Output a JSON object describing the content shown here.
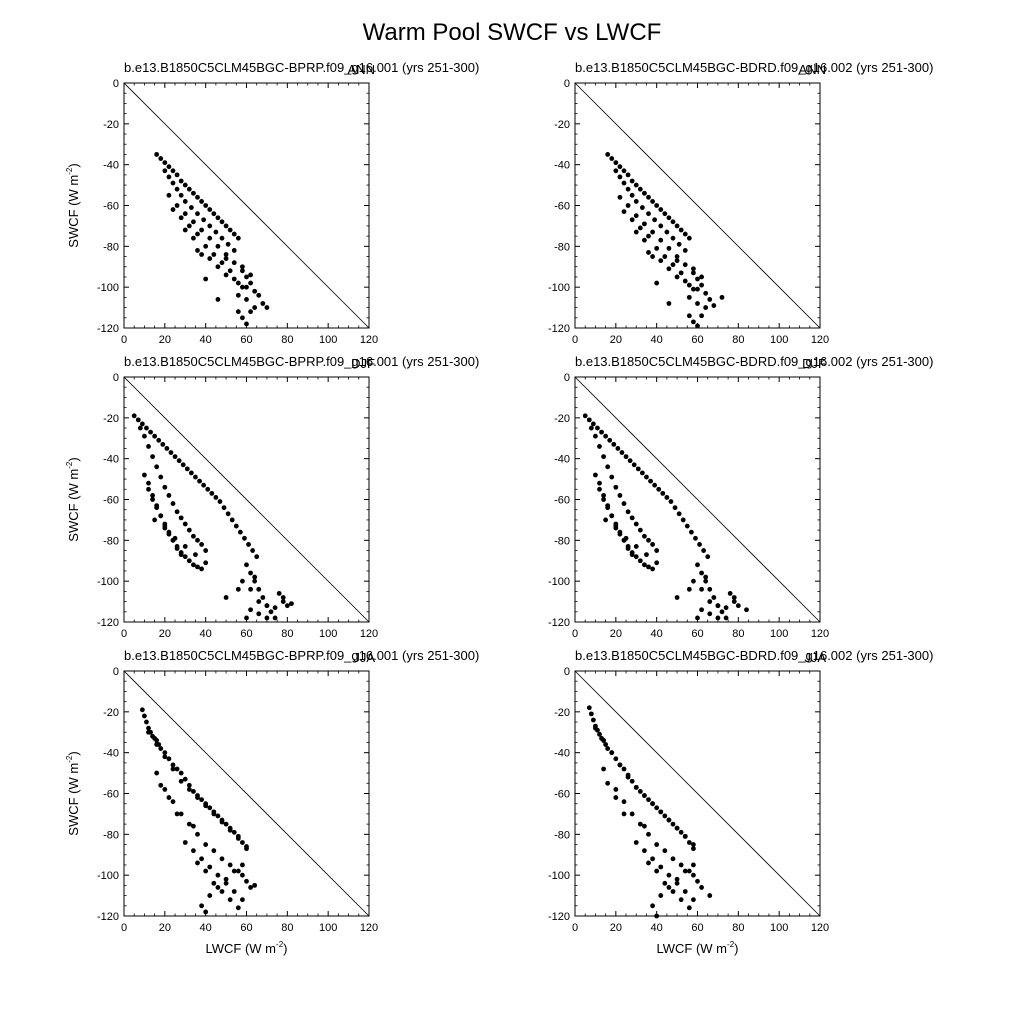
{
  "figure": {
    "title": "Warm Pool SWCF vs LWCF"
  },
  "chart_data": [
    {
      "type": "scatter",
      "panel": 0,
      "position": "top-left",
      "title": "b.e13.B1850C5CLM45BGC-BPRP.f09_g16.001 (yrs 251-300)",
      "season": "ANN",
      "xlabel": "",
      "ylabel": "SWCF (W m-2)",
      "xlabel_main": "",
      "xlabel_unit": "",
      "ylabel_main": "SWCF",
      "ylabel_unit": "(W m",
      "ylabel_sup": "-2",
      "ylabel_close": ")",
      "xlim": [
        0,
        120
      ],
      "ylim": [
        -120,
        0
      ],
      "xticks": [
        "0",
        "20",
        "40",
        "60",
        "80",
        "100",
        "120"
      ],
      "yticks": [
        "0",
        "-20",
        "-40",
        "-60",
        "-80",
        "-100",
        "-120"
      ],
      "reference_line": "1:1 (SWCF = -LWCF)",
      "points_x": [
        16,
        18,
        20,
        22,
        24,
        26,
        28,
        30,
        32,
        34,
        36,
        38,
        40,
        42,
        44,
        46,
        48,
        50,
        52,
        54,
        56,
        20,
        22,
        24,
        26,
        28,
        30,
        33,
        36,
        39,
        42,
        45,
        48,
        51,
        54,
        22,
        26,
        30,
        34,
        38,
        42,
        46,
        50,
        54,
        58,
        60,
        62,
        64,
        66,
        68,
        70,
        58,
        60,
        62,
        56,
        58,
        60,
        64,
        54,
        56,
        58,
        60,
        62,
        48,
        52,
        56,
        44,
        50,
        24,
        28,
        32,
        36,
        40,
        30,
        34,
        38,
        42,
        46,
        50,
        36,
        40,
        46
      ],
      "points_y": [
        -35,
        -37,
        -39,
        -41,
        -43,
        -45,
        -48,
        -50,
        -52,
        -54,
        -56,
        -58,
        -60,
        -62,
        -64,
        -66,
        -68,
        -70,
        -72,
        -74,
        -76,
        -43,
        -46,
        -49,
        -52,
        -55,
        -58,
        -61,
        -64,
        -67,
        -70,
        -73,
        -76,
        -79,
        -82,
        -55,
        -60,
        -64,
        -68,
        -72,
        -76,
        -80,
        -84,
        -88,
        -92,
        -95,
        -98,
        -102,
        -104,
        -108,
        -110,
        -100,
        -106,
        -112,
        -112,
        -115,
        -118,
        -110,
        -96,
        -104,
        -90,
        -100,
        -94,
        -88,
        -92,
        -98,
        -84,
        -86,
        -62,
        -66,
        -70,
        -74,
        -80,
        -72,
        -76,
        -84,
        -86,
        -90,
        -94,
        -82,
        -96,
        -106
      ]
    },
    {
      "type": "scatter",
      "panel": 1,
      "position": "top-right",
      "title": "b.e13.B1850C5CLM45BGC-BDRD.f09_g16.002 (yrs 251-300)",
      "season": "ANN",
      "xlabel": "",
      "ylabel": "",
      "xlabel_main": "",
      "xlabel_unit": "",
      "ylabel_main": "",
      "ylabel_unit": "",
      "ylabel_sup": "",
      "ylabel_close": "",
      "xlim": [
        0,
        120
      ],
      "ylim": [
        -120,
        0
      ],
      "xticks": [
        "0",
        "20",
        "40",
        "60",
        "80",
        "100",
        "120"
      ],
      "yticks": [
        "0",
        "-20",
        "-40",
        "-60",
        "-80",
        "-100",
        "-120"
      ],
      "reference_line": "1:1 (SWCF = -LWCF)",
      "points_x": [
        16,
        18,
        20,
        22,
        24,
        26,
        28,
        30,
        32,
        34,
        36,
        38,
        40,
        42,
        44,
        46,
        48,
        50,
        52,
        54,
        56,
        20,
        22,
        24,
        26,
        28,
        30,
        33,
        36,
        39,
        42,
        45,
        48,
        51,
        54,
        22,
        26,
        30,
        34,
        38,
        42,
        46,
        50,
        54,
        58,
        60,
        62,
        64,
        66,
        68,
        72,
        58,
        60,
        62,
        56,
        58,
        60,
        64,
        54,
        56,
        58,
        60,
        62,
        48,
        52,
        56,
        44,
        50,
        24,
        28,
        32,
        36,
        40,
        30,
        34,
        38,
        42,
        46,
        50,
        36,
        40,
        46
      ],
      "points_y": [
        -35,
        -37,
        -39,
        -41,
        -43,
        -45,
        -48,
        -50,
        -52,
        -54,
        -56,
        -58,
        -60,
        -62,
        -64,
        -66,
        -68,
        -70,
        -72,
        -74,
        -76,
        -43,
        -46,
        -49,
        -52,
        -55,
        -58,
        -61,
        -64,
        -67,
        -70,
        -73,
        -76,
        -79,
        -82,
        -56,
        -60,
        -65,
        -69,
        -73,
        -77,
        -81,
        -85,
        -89,
        -93,
        -96,
        -99,
        -103,
        -106,
        -109,
        -105,
        -101,
        -108,
        -114,
        -114,
        -117,
        -119,
        -110,
        -97,
        -105,
        -91,
        -101,
        -95,
        -89,
        -93,
        -99,
        -85,
        -87,
        -63,
        -67,
        -71,
        -75,
        -81,
        -73,
        -77,
        -85,
        -87,
        -91,
        -95,
        -83,
        -98,
        -108
      ]
    },
    {
      "type": "scatter",
      "panel": 2,
      "position": "middle-left",
      "title": "b.e13.B1850C5CLM45BGC-BPRP.f09_g16.001 (yrs 251-300)",
      "season": "DJF",
      "xlabel": "",
      "ylabel": "SWCF (W m-2)",
      "xlabel_main": "",
      "xlabel_unit": "",
      "ylabel_main": "SWCF",
      "ylabel_unit": "(W m",
      "ylabel_sup": "-2",
      "ylabel_close": ")",
      "xlim": [
        0,
        120
      ],
      "ylim": [
        -120,
        0
      ],
      "xticks": [
        "0",
        "20",
        "40",
        "60",
        "80",
        "100",
        "120"
      ],
      "yticks": [
        "0",
        "-20",
        "-40",
        "-60",
        "-80",
        "-100",
        "-120"
      ],
      "reference_line": "1:1 (SWCF = -LWCF)",
      "points_x": [
        5,
        7,
        9,
        11,
        13,
        15,
        17,
        19,
        21,
        23,
        25,
        27,
        29,
        31,
        33,
        35,
        37,
        39,
        41,
        43,
        45,
        47,
        49,
        51,
        53,
        55,
        57,
        59,
        61,
        63,
        65,
        8,
        10,
        12,
        14,
        16,
        18,
        20,
        22,
        24,
        26,
        28,
        30,
        32,
        34,
        36,
        38,
        40,
        12,
        14,
        16,
        18,
        20,
        22,
        24,
        26,
        28,
        30,
        32,
        34,
        36,
        38,
        10,
        12,
        14,
        16,
        18,
        20,
        22,
        24,
        26,
        28,
        15,
        20,
        25,
        30,
        35,
        40,
        60,
        62,
        64,
        66,
        68,
        70,
        72,
        74,
        76,
        78,
        80,
        82,
        62,
        66,
        70,
        74,
        78,
        58,
        62,
        66,
        70,
        60,
        64,
        56,
        50,
        54,
        48
      ],
      "points_y": [
        -19,
        -21,
        -23,
        -25,
        -27,
        -29,
        -31,
        -33,
        -35,
        -37,
        -39,
        -41,
        -43,
        -45,
        -47,
        -49,
        -51,
        -53,
        -55,
        -57,
        -59,
        -61,
        -64,
        -67,
        -70,
        -73,
        -76,
        -79,
        -82,
        -85,
        -88,
        -25,
        -29,
        -34,
        -39,
        -44,
        -49,
        -54,
        -58,
        -62,
        -66,
        -69,
        -72,
        -75,
        -78,
        -80,
        -82,
        -85,
        -55,
        -60,
        -64,
        -68,
        -72,
        -76,
        -80,
        -83,
        -86,
        -88,
        -90,
        -92,
        -93,
        -94,
        -48,
        -52,
        -58,
        -63,
        -68,
        -73,
        -77,
        -80,
        -84,
        -87,
        -70,
        -74,
        -79,
        -83,
        -87,
        -91,
        -92,
        -96,
        -100,
        -104,
        -108,
        -112,
        -115,
        -118,
        -106,
        -110,
        -112,
        -111,
        -114,
        -116,
        -118,
        -113,
        -108,
        -100,
        -104,
        -110,
        -112,
        -118,
        -98,
        -104,
        -108
      ]
    },
    {
      "type": "scatter",
      "panel": 3,
      "position": "middle-right",
      "title": "b.e13.B1850C5CLM45BGC-BDRD.f09_g16.002 (yrs 251-300)",
      "season": "DJF",
      "xlabel": "",
      "ylabel": "",
      "xlabel_main": "",
      "xlabel_unit": "",
      "ylabel_main": "",
      "ylabel_unit": "",
      "ylabel_sup": "",
      "ylabel_close": "",
      "xlim": [
        0,
        120
      ],
      "ylim": [
        -120,
        0
      ],
      "xticks": [
        "0",
        "20",
        "40",
        "60",
        "80",
        "100",
        "120"
      ],
      "yticks": [
        "0",
        "-20",
        "-40",
        "-60",
        "-80",
        "-100",
        "-120"
      ],
      "reference_line": "1:1 (SWCF = -LWCF)",
      "points_x": [
        5,
        7,
        9,
        11,
        13,
        15,
        17,
        19,
        21,
        23,
        25,
        27,
        29,
        31,
        33,
        35,
        37,
        39,
        41,
        43,
        45,
        47,
        49,
        51,
        53,
        55,
        57,
        59,
        61,
        63,
        65,
        8,
        10,
        12,
        14,
        16,
        18,
        20,
        22,
        24,
        26,
        28,
        30,
        32,
        34,
        36,
        38,
        40,
        12,
        14,
        16,
        18,
        20,
        22,
        24,
        26,
        28,
        30,
        32,
        34,
        36,
        38,
        10,
        12,
        14,
        16,
        18,
        20,
        22,
        24,
        26,
        28,
        15,
        20,
        25,
        30,
        35,
        40,
        60,
        62,
        64,
        66,
        68,
        70,
        72,
        74,
        76,
        78,
        80,
        84,
        62,
        66,
        70,
        74,
        78,
        58,
        62,
        66,
        70,
        60,
        64,
        56,
        50,
        54,
        48
      ],
      "points_y": [
        -19,
        -21,
        -23,
        -25,
        -27,
        -29,
        -31,
        -33,
        -35,
        -37,
        -39,
        -41,
        -43,
        -45,
        -47,
        -49,
        -51,
        -53,
        -55,
        -57,
        -59,
        -61,
        -64,
        -67,
        -70,
        -73,
        -76,
        -79,
        -82,
        -85,
        -88,
        -25,
        -29,
        -34,
        -39,
        -44,
        -49,
        -54,
        -58,
        -62,
        -66,
        -69,
        -72,
        -75,
        -78,
        -80,
        -82,
        -85,
        -55,
        -60,
        -64,
        -68,
        -72,
        -76,
        -80,
        -83,
        -86,
        -88,
        -90,
        -92,
        -93,
        -94,
        -48,
        -52,
        -58,
        -63,
        -68,
        -73,
        -77,
        -80,
        -84,
        -87,
        -70,
        -74,
        -79,
        -83,
        -87,
        -91,
        -92,
        -96,
        -100,
        -104,
        -108,
        -112,
        -115,
        -118,
        -106,
        -110,
        -112,
        -114,
        -114,
        -116,
        -118,
        -113,
        -108,
        -100,
        -104,
        -110,
        -112,
        -118,
        -98,
        -104,
        -108
      ]
    },
    {
      "type": "scatter",
      "panel": 4,
      "position": "bottom-left",
      "title": "b.e13.B1850C5CLM45BGC-BPRP.f09_g16.001 (yrs 251-300)",
      "season": "JJA",
      "xlabel": "LWCF (W m-2)",
      "ylabel": "SWCF (W m-2)",
      "xlabel_main": "LWCF",
      "xlabel_unit": "(W m",
      "xlabel_sup": "-2",
      "xlabel_close": ")",
      "ylabel_main": "SWCF",
      "ylabel_unit": "(W m",
      "ylabel_sup": "-2",
      "ylabel_close": ")",
      "xlim": [
        0,
        120
      ],
      "ylim": [
        -120,
        0
      ],
      "xticks": [
        "0",
        "20",
        "40",
        "60",
        "80",
        "100",
        "120"
      ],
      "yticks": [
        "0",
        "-20",
        "-40",
        "-60",
        "-80",
        "-100",
        "-120"
      ],
      "reference_line": "1:1 (SWCF = -LWCF)",
      "points_x": [
        9,
        10,
        11,
        12,
        13,
        14,
        15,
        16,
        17,
        18,
        20,
        22,
        24,
        26,
        28,
        30,
        32,
        34,
        36,
        38,
        40,
        42,
        44,
        46,
        48,
        50,
        52,
        54,
        56,
        58,
        60,
        12,
        16,
        20,
        24,
        28,
        32,
        36,
        40,
        44,
        48,
        52,
        56,
        60,
        20,
        24,
        28,
        32,
        36,
        40,
        44,
        48,
        52,
        56,
        58,
        60,
        62,
        64,
        30,
        34,
        38,
        42,
        46,
        50,
        54,
        58,
        36,
        40,
        44,
        48,
        52,
        56,
        40,
        38,
        42,
        46,
        50,
        54,
        58,
        16,
        18,
        22,
        26,
        34
      ],
      "points_y": [
        -19,
        -22,
        -25,
        -28,
        -30,
        -32,
        -33,
        -34,
        -36,
        -38,
        -40,
        -43,
        -46,
        -48,
        -50,
        -53,
        -56,
        -59,
        -61,
        -63,
        -65,
        -67,
        -69,
        -71,
        -73,
        -75,
        -77,
        -79,
        -81,
        -84,
        -87,
        -30,
        -36,
        -42,
        -48,
        -54,
        -58,
        -62,
        -66,
        -70,
        -74,
        -78,
        -82,
        -86,
        -58,
        -64,
        -70,
        -75,
        -80,
        -85,
        -88,
        -92,
        -95,
        -98,
        -100,
        -103,
        -106,
        -105,
        -84,
        -88,
        -92,
        -96,
        -100,
        -104,
        -108,
        -112,
        -94,
        -98,
        -104,
        -108,
        -112,
        -116,
        -118,
        -115,
        -110,
        -106,
        -102,
        -98,
        -95,
        -50,
        -56,
        -62,
        -70,
        -76
      ]
    },
    {
      "type": "scatter",
      "panel": 5,
      "position": "bottom-right",
      "title": "b.e13.B1850C5CLM45BGC-BDRD.f09_g16.002 (yrs 251-300)",
      "season": "JJA",
      "xlabel": "LWCF (W m-2)",
      "ylabel": "",
      "xlabel_main": "LWCF",
      "xlabel_unit": "(W m",
      "xlabel_sup": "-2",
      "xlabel_close": ")",
      "ylabel_main": "",
      "ylabel_unit": "",
      "ylabel_sup": "",
      "ylabel_close": "",
      "xlim": [
        0,
        120
      ],
      "ylim": [
        -120,
        0
      ],
      "xticks": [
        "0",
        "20",
        "40",
        "60",
        "80",
        "100",
        "120"
      ],
      "yticks": [
        "0",
        "-20",
        "-40",
        "-60",
        "-80",
        "-100",
        "-120"
      ],
      "reference_line": "1:1 (SWCF = -LWCF)",
      "points_x": [
        7,
        8,
        9,
        10,
        11,
        12,
        13,
        14,
        15,
        16,
        18,
        20,
        22,
        24,
        26,
        28,
        30,
        32,
        34,
        36,
        38,
        40,
        42,
        44,
        46,
        48,
        50,
        52,
        54,
        56,
        58,
        10,
        14,
        18,
        22,
        26,
        30,
        34,
        38,
        42,
        46,
        50,
        54,
        58,
        20,
        24,
        28,
        32,
        36,
        40,
        44,
        48,
        52,
        56,
        58,
        60,
        62,
        66,
        30,
        34,
        38,
        42,
        46,
        50,
        54,
        58,
        36,
        40,
        44,
        48,
        52,
        56,
        40,
        38,
        42,
        46,
        50,
        54,
        58,
        14,
        16,
        20,
        24,
        34
      ],
      "points_y": [
        -18,
        -21,
        -24,
        -27,
        -29,
        -31,
        -33,
        -34,
        -36,
        -38,
        -40,
        -43,
        -46,
        -48,
        -51,
        -54,
        -57,
        -59,
        -61,
        -63,
        -65,
        -67,
        -69,
        -71,
        -73,
        -75,
        -77,
        -79,
        -81,
        -84,
        -87,
        -28,
        -34,
        -40,
        -46,
        -52,
        -57,
        -61,
        -65,
        -69,
        -73,
        -77,
        -81,
        -85,
        -58,
        -64,
        -70,
        -75,
        -80,
        -85,
        -88,
        -92,
        -95,
        -98,
        -100,
        -103,
        -106,
        -110,
        -84,
        -88,
        -92,
        -96,
        -100,
        -104,
        -108,
        -112,
        -94,
        -98,
        -104,
        -108,
        -112,
        -116,
        -120,
        -115,
        -110,
        -106,
        -102,
        -98,
        -95,
        -48,
        -55,
        -62,
        -70,
        -76
      ]
    }
  ]
}
